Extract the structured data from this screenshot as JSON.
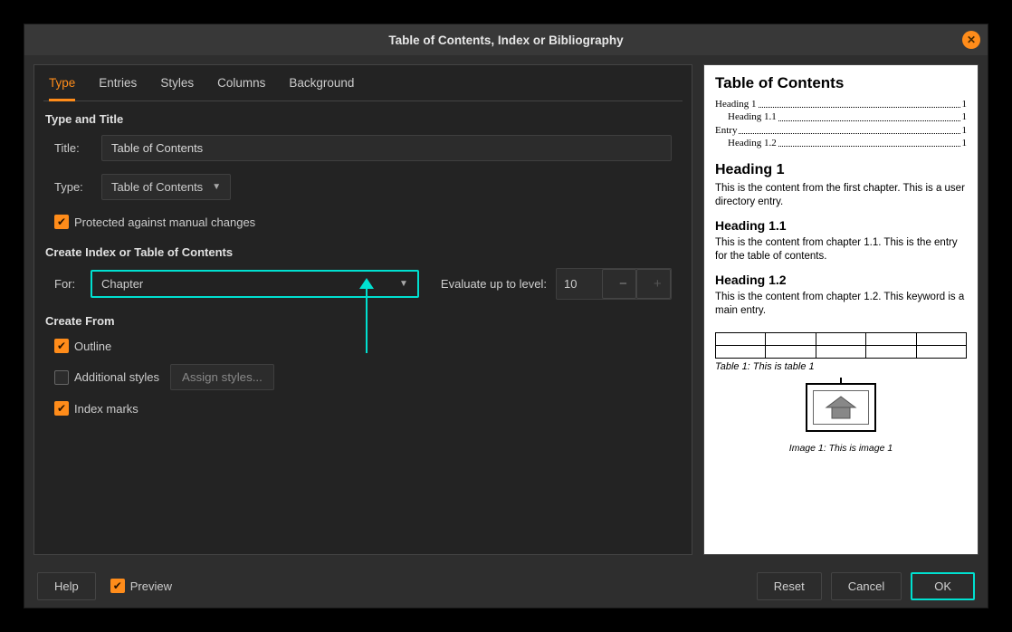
{
  "dialog": {
    "title": "Table of Contents, Index or Bibliography"
  },
  "tabs": {
    "type": "Type",
    "entries": "Entries",
    "styles": "Styles",
    "columns": "Columns",
    "background": "Background"
  },
  "type_section": {
    "heading": "Type and Title",
    "title_label": "Title:",
    "title_value": "Table of Contents",
    "type_label": "Type:",
    "type_value": "Table of Contents",
    "protected_label": "Protected against manual changes"
  },
  "create_index": {
    "heading": "Create Index or Table of Contents",
    "for_label": "For:",
    "for_value": "Chapter",
    "evaluate_label": "Evaluate up to level:",
    "evaluate_value": "10"
  },
  "create_from": {
    "heading": "Create From",
    "outline": "Outline",
    "additional_styles": "Additional styles",
    "assign_styles": "Assign styles...",
    "index_marks": "Index marks"
  },
  "preview": {
    "toc_title": "Table of Contents",
    "lines": [
      {
        "text": "Heading 1",
        "page": "1",
        "indent": false
      },
      {
        "text": "Heading 1.1",
        "page": "1",
        "indent": true
      },
      {
        "text": "Entry",
        "page": "1",
        "indent": false
      },
      {
        "text": "Heading 1.2",
        "page": "1",
        "indent": true
      }
    ],
    "h1": "Heading 1",
    "p1": "This is the content from the first chapter. This is a user directory entry.",
    "h11": "Heading 1.1",
    "p11": "This is the content from chapter 1.1. This is the entry for the table of contents.",
    "h12": "Heading 1.2",
    "p12": "This is the content from chapter 1.2. This keyword is a main entry.",
    "table_caption": "Table 1: This is table 1",
    "image_caption": "Image 1: This is image 1"
  },
  "footer": {
    "help": "Help",
    "preview": "Preview",
    "reset": "Reset",
    "cancel": "Cancel",
    "ok": "OK"
  },
  "colors": {
    "accent": "#ff8c1a",
    "highlight": "#00e0d0",
    "panel": "#232323"
  }
}
